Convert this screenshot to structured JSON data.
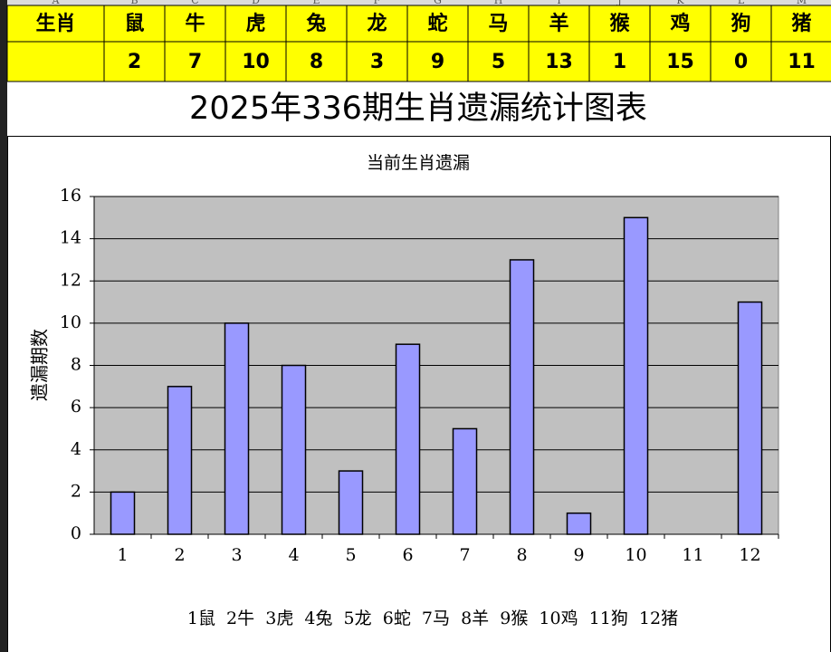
{
  "sheet": {
    "column_letters": [
      "A",
      "B",
      "C",
      "D",
      "E",
      "F",
      "G",
      "H",
      "I",
      "J",
      "K",
      "L",
      "M"
    ]
  },
  "table": {
    "header": [
      "生肖",
      "鼠",
      "牛",
      "虎",
      "兔",
      "龙",
      "蛇",
      "马",
      "羊",
      "猴",
      "鸡",
      "狗",
      "猪"
    ],
    "values": [
      2,
      7,
      10,
      8,
      3,
      9,
      5,
      13,
      1,
      15,
      0,
      11
    ]
  },
  "banner": "2025年336期生肖遗漏统计图表",
  "chart_data": {
    "type": "bar",
    "title": "当前生肖遗漏",
    "y_label": "遗漏期数",
    "categories": [
      "1",
      "2",
      "3",
      "4",
      "5",
      "6",
      "7",
      "8",
      "9",
      "10",
      "11",
      "12"
    ],
    "values": [
      2,
      7,
      10,
      8,
      3,
      9,
      5,
      13,
      1,
      15,
      0,
      11
    ],
    "color": "#9999ff",
    "ylim": [
      0,
      16
    ],
    "yticks": [
      0,
      2,
      4,
      6,
      8,
      10,
      12,
      14,
      16
    ],
    "grid": true,
    "footnote": "1鼠  2牛  3虎  4兔  5龙  6蛇  7马  8羊  9猴  10鸡  11狗  12猪"
  }
}
